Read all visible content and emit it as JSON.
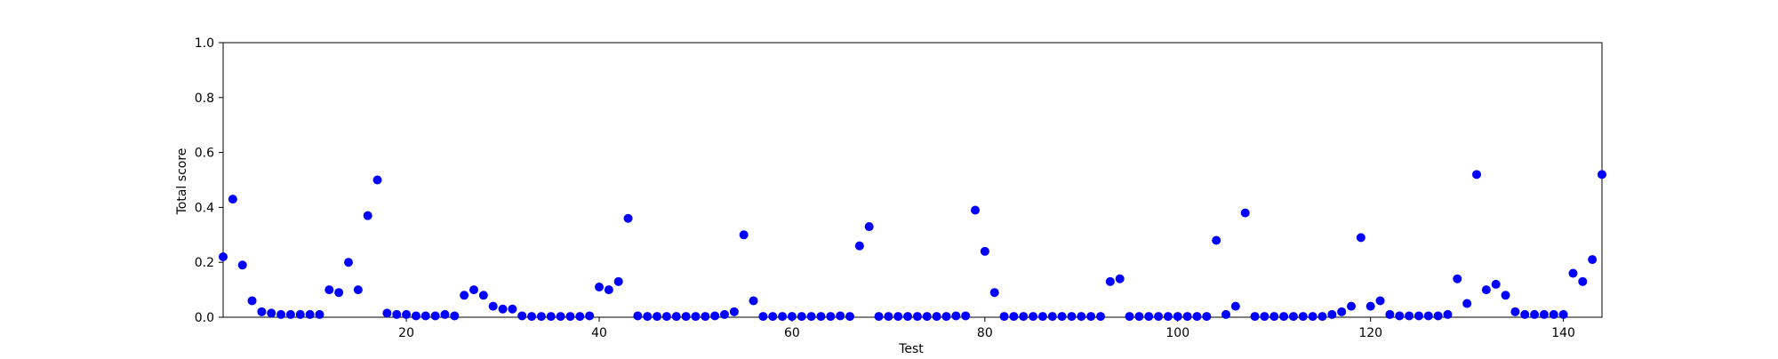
{
  "chart_data": {
    "type": "scatter",
    "xlabel": "Test",
    "ylabel": "Total score",
    "xlim": [
      1,
      144
    ],
    "ylim": [
      0.0,
      1.0
    ],
    "x_ticks": [
      20,
      40,
      60,
      80,
      100,
      120,
      140
    ],
    "x_tick_labels": [
      "20",
      "40",
      "60",
      "80",
      "100",
      "120",
      "140"
    ],
    "y_ticks": [
      0.0,
      0.2,
      0.4,
      0.6,
      0.8,
      1.0
    ],
    "y_tick_labels": [
      "0.0",
      "0.2",
      "0.4",
      "0.6",
      "0.8",
      "1.0"
    ],
    "grid": false,
    "marker_color": "#0000ff",
    "series": [
      {
        "x": [
          1,
          2,
          3,
          4,
          5,
          6,
          7,
          8,
          9,
          10,
          11,
          12,
          13,
          14,
          15,
          16,
          17,
          18,
          19,
          20,
          21,
          22,
          23,
          24,
          25,
          26,
          27,
          28,
          29,
          30,
          31,
          32,
          33,
          34,
          35,
          36,
          37,
          38,
          39,
          40,
          41,
          42,
          43,
          44,
          45,
          46,
          47,
          48,
          49,
          50,
          51,
          52,
          53,
          54,
          55,
          56,
          57,
          58,
          59,
          60,
          61,
          62,
          63,
          64,
          65,
          66,
          67,
          68,
          69,
          70,
          71,
          72,
          73,
          74,
          75,
          76,
          77,
          78,
          79,
          80,
          81,
          82,
          83,
          84,
          85,
          86,
          87,
          88,
          89,
          90,
          91,
          92,
          93,
          94,
          95,
          96,
          97,
          98,
          99,
          100,
          101,
          102,
          103,
          104,
          105,
          106,
          107,
          108,
          109,
          110,
          111,
          112,
          113,
          114,
          115,
          116,
          117,
          118,
          119,
          120,
          121,
          122,
          123,
          124,
          125,
          126,
          127,
          128,
          129,
          130,
          131,
          132,
          133,
          134,
          135,
          136,
          137,
          138,
          139,
          140,
          141,
          142,
          143,
          144
        ],
        "y": [
          0.22,
          0.43,
          0.19,
          0.06,
          0.02,
          0.015,
          0.01,
          0.01,
          0.01,
          0.01,
          0.01,
          0.1,
          0.09,
          0.2,
          0.1,
          0.37,
          0.5,
          0.015,
          0.01,
          0.01,
          0.005,
          0.005,
          0.005,
          0.01,
          0.005,
          0.08,
          0.1,
          0.08,
          0.04,
          0.03,
          0.03,
          0.005,
          0.003,
          0.003,
          0.003,
          0.003,
          0.003,
          0.003,
          0.005,
          0.11,
          0.1,
          0.13,
          0.36,
          0.005,
          0.003,
          0.003,
          0.003,
          0.003,
          0.003,
          0.003,
          0.003,
          0.005,
          0.01,
          0.02,
          0.3,
          0.06,
          0.003,
          0.003,
          0.003,
          0.003,
          0.003,
          0.003,
          0.003,
          0.003,
          0.005,
          0.003,
          0.26,
          0.33,
          0.003,
          0.003,
          0.003,
          0.003,
          0.003,
          0.003,
          0.003,
          0.003,
          0.005,
          0.005,
          0.39,
          0.24,
          0.09,
          0.003,
          0.003,
          0.003,
          0.003,
          0.003,
          0.003,
          0.003,
          0.003,
          0.003,
          0.003,
          0.003,
          0.13,
          0.14,
          0.003,
          0.003,
          0.003,
          0.003,
          0.003,
          0.003,
          0.003,
          0.003,
          0.003,
          0.28,
          0.01,
          0.04,
          0.38,
          0.003,
          0.003,
          0.003,
          0.003,
          0.003,
          0.003,
          0.003,
          0.003,
          0.01,
          0.02,
          0.04,
          0.29,
          0.04,
          0.06,
          0.01,
          0.005,
          0.005,
          0.005,
          0.005,
          0.005,
          0.01,
          0.14,
          0.05,
          0.52,
          0.1,
          0.12,
          0.08,
          0.02,
          0.01,
          0.01,
          0.01,
          0.01,
          0.01,
          0.16,
          0.13,
          0.21,
          0.52
        ]
      }
    ]
  }
}
